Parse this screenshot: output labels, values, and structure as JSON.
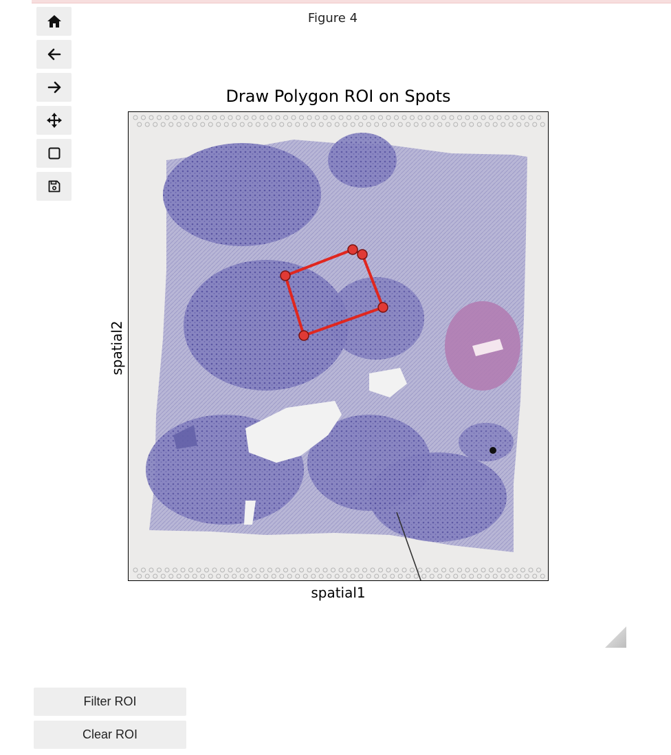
{
  "figure": {
    "label": "Figure 4",
    "title": "Draw Polygon ROI on Spots",
    "xlabel": "spatial1",
    "ylabel": "spatial2"
  },
  "toolbar": {
    "tools": [
      {
        "name": "home-button",
        "icon": "home-icon"
      },
      {
        "name": "back-button",
        "icon": "arrow-left-icon"
      },
      {
        "name": "forward-button",
        "icon": "arrow-right-icon"
      },
      {
        "name": "pan-button",
        "icon": "move-icon"
      },
      {
        "name": "zoom-rect-button",
        "icon": "square-icon"
      },
      {
        "name": "save-figure-button",
        "icon": "floppy-disk-icon"
      }
    ]
  },
  "roi": {
    "color": "#e0271f",
    "vertex_count": 5
  },
  "buttons": {
    "filter_label": "Filter ROI",
    "clear_label": "Clear ROI"
  },
  "colors": {
    "tissue": "#7c79b8",
    "background": "#ecebea",
    "button_bg": "#eeeeee"
  }
}
